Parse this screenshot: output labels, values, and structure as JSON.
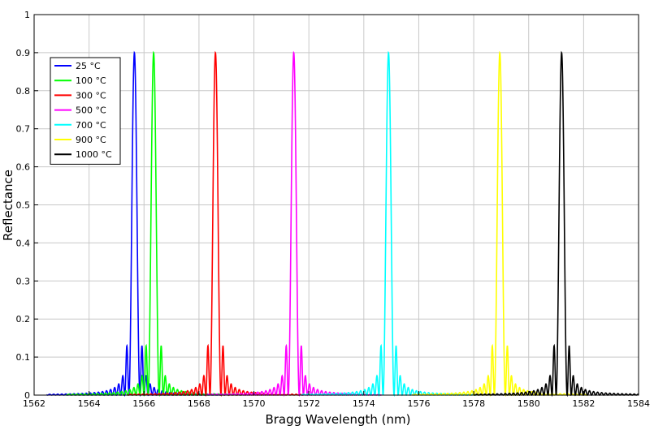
{
  "chart_data": {
    "type": "line",
    "title": "",
    "xlabel": "Bragg Wavelength (nm)",
    "ylabel": "Reflectance",
    "xlim": [
      1562,
      1584
    ],
    "ylim": [
      0,
      1
    ],
    "xticks": [
      1562,
      1564,
      1566,
      1568,
      1570,
      1572,
      1574,
      1576,
      1578,
      1580,
      1582,
      1584
    ],
    "yticks": [
      0,
      0.1,
      0.2,
      0.3,
      0.4,
      0.5,
      0.6,
      0.7,
      0.8,
      0.9,
      1
    ],
    "grid": true,
    "legend_position": "top-left",
    "peak_reflectance": 0.9,
    "first_sidelobe_reflectance": 0.13,
    "series": [
      {
        "name": "25 °C",
        "center_nm": 1565.65,
        "color": "#0000ff"
      },
      {
        "name": "100 °C",
        "center_nm": 1566.35,
        "color": "#00ff00"
      },
      {
        "name": "300 °C",
        "center_nm": 1568.6,
        "color": "#ff0000"
      },
      {
        "name": "500 °C",
        "center_nm": 1571.45,
        "color": "#ff00ff"
      },
      {
        "name": "700 °C",
        "center_nm": 1574.9,
        "color": "#00ffff"
      },
      {
        "name": "900 °C",
        "center_nm": 1578.95,
        "color": "#ffff00"
      },
      {
        "name": "1000 °C",
        "center_nm": 1581.2,
        "color": "#000000"
      }
    ]
  }
}
